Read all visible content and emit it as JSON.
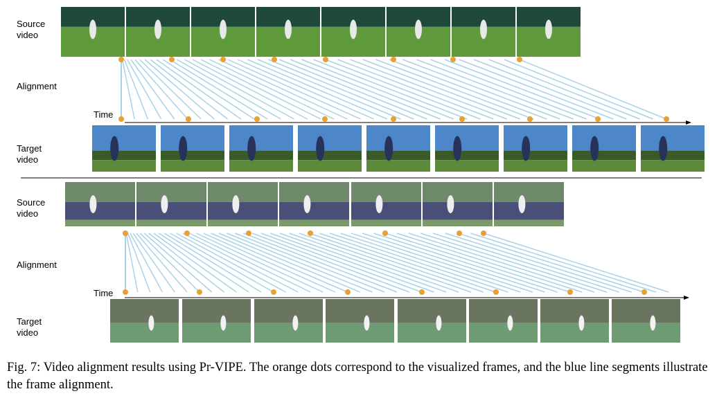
{
  "panels": [
    {
      "source_label": "Source video",
      "alignment_label": "Alignment",
      "time_label": "Time",
      "target_label": "Target video"
    },
    {
      "source_label": "Source video",
      "alignment_label": "Alignment",
      "time_label": "Time",
      "target_label": "Target video"
    }
  ],
  "caption": "Fig. 7: Video alignment results using Pr-VIPE. The orange dots correspond to the visualized frames, and the blue line segments illustrate the frame alignment."
}
